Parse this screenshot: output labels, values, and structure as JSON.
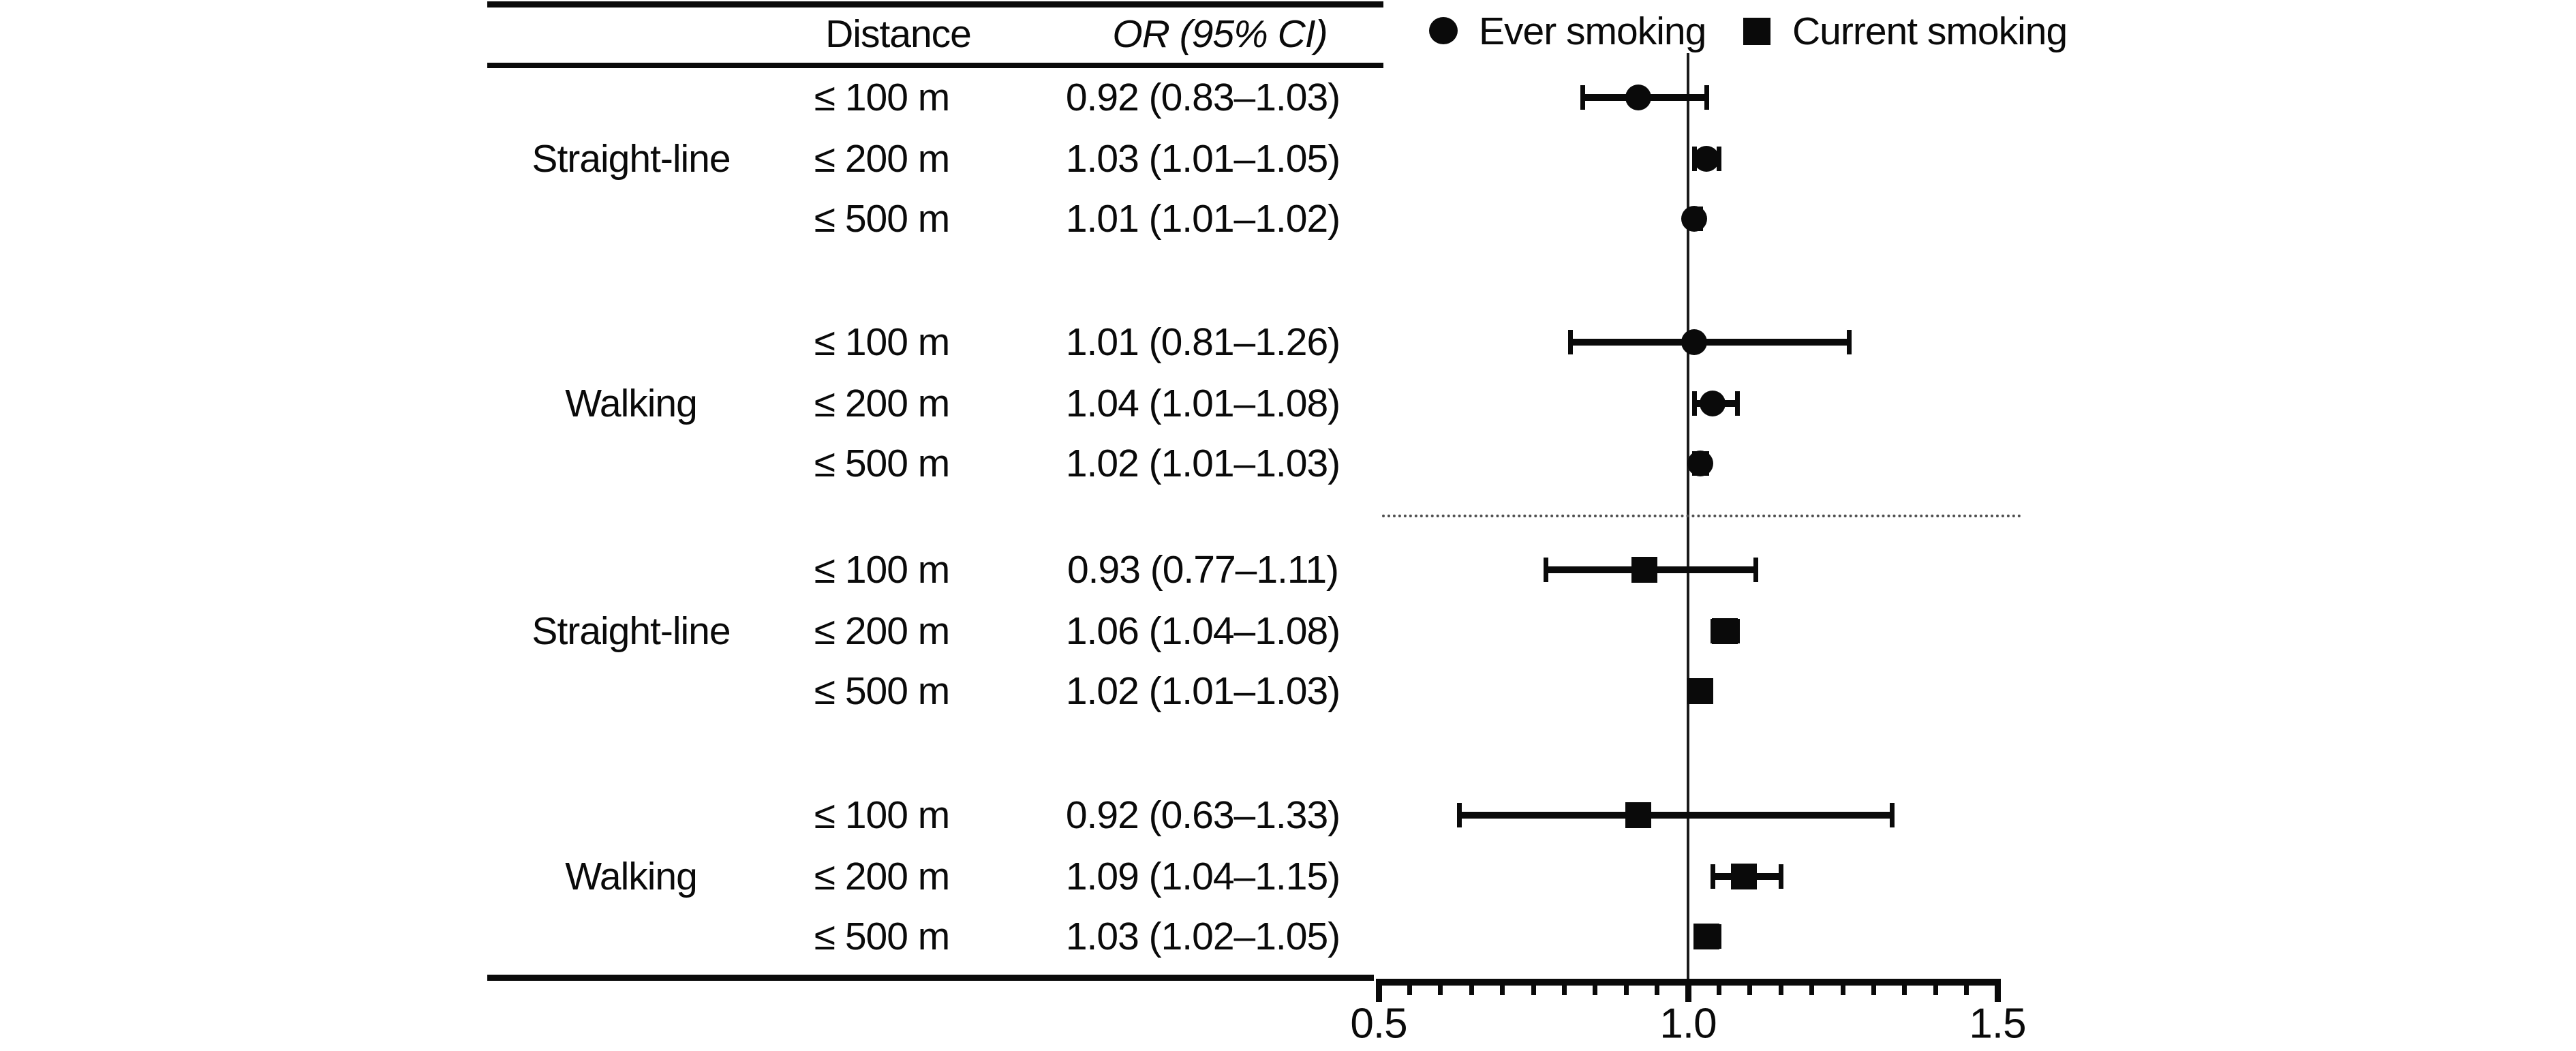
{
  "figure": {
    "background": "#ffffff",
    "text_color": "#0a0a0a",
    "marker_color": "#0a0a0a",
    "divider_color": "#4d4d4d"
  },
  "table": {
    "headers": {
      "distance": "Distance",
      "or": "OR (95% CI)"
    },
    "groups": [
      {
        "exposure": "Ever smoking",
        "method": "Straight-line",
        "rows": [
          {
            "distance": "≤ 100 m",
            "or_text": "0.92 (0.83–1.03)"
          },
          {
            "distance": "≤ 200 m",
            "or_text": "1.03 (1.01–1.05)"
          },
          {
            "distance": "≤ 500 m",
            "or_text": "1.01 (1.01–1.02)"
          }
        ]
      },
      {
        "exposure": "Ever smoking",
        "method": "Walking",
        "rows": [
          {
            "distance": "≤ 100 m",
            "or_text": "1.01 (0.81–1.26)"
          },
          {
            "distance": "≤ 200 m",
            "or_text": "1.04 (1.01–1.08)"
          },
          {
            "distance": "≤ 500 m",
            "or_text": "1.02 (1.01–1.03)"
          }
        ]
      },
      {
        "exposure": "Current smoking",
        "method": "Straight-line",
        "rows": [
          {
            "distance": "≤ 100 m",
            "or_text": "0.93 (0.77–1.11)"
          },
          {
            "distance": "≤ 200 m",
            "or_text": "1.06 (1.04–1.08)"
          },
          {
            "distance": "≤ 500 m",
            "or_text": "1.02 (1.01–1.03)"
          }
        ]
      },
      {
        "exposure": "Current smoking",
        "method": "Walking",
        "rows": [
          {
            "distance": "≤ 100 m",
            "or_text": "0.92 (0.63–1.33)"
          },
          {
            "distance": "≤ 200 m",
            "or_text": "1.09 (1.04–1.15)"
          },
          {
            "distance": "≤ 500 m",
            "or_text": "1.03 (1.02–1.05)"
          }
        ]
      }
    ]
  },
  "legend": [
    {
      "marker": "circle",
      "label": "Ever smoking"
    },
    {
      "marker": "square",
      "label": "Current smoking"
    }
  ],
  "chart_data": {
    "type": "scatter",
    "subtype": "forest-plot",
    "title": "",
    "xlabel": "",
    "ylabel": "",
    "grid": false,
    "legend_position": "top",
    "axis": {
      "min": 0.5,
      "max": 1.5,
      "major_ticks": [
        0.5,
        1.0,
        1.5
      ],
      "tick_labels": [
        "0.5",
        "1.0",
        "1.5"
      ],
      "minor_tick_step": 0.05,
      "reference_line": 1.0
    },
    "series": [
      {
        "name": "Ever smoking",
        "marker": "circle",
        "points": [
          {
            "method": "Straight-line",
            "distance": "≤ 100 m",
            "or": 0.92,
            "ci_low": 0.83,
            "ci_high": 1.03
          },
          {
            "method": "Straight-line",
            "distance": "≤ 200 m",
            "or": 1.03,
            "ci_low": 1.01,
            "ci_high": 1.05
          },
          {
            "method": "Straight-line",
            "distance": "≤ 500 m",
            "or": 1.01,
            "ci_low": 1.01,
            "ci_high": 1.02
          },
          {
            "method": "Walking",
            "distance": "≤ 100 m",
            "or": 1.01,
            "ci_low": 0.81,
            "ci_high": 1.26
          },
          {
            "method": "Walking",
            "distance": "≤ 200 m",
            "or": 1.04,
            "ci_low": 1.01,
            "ci_high": 1.08
          },
          {
            "method": "Walking",
            "distance": "≤ 500 m",
            "or": 1.02,
            "ci_low": 1.01,
            "ci_high": 1.03
          }
        ]
      },
      {
        "name": "Current smoking",
        "marker": "square",
        "points": [
          {
            "method": "Straight-line",
            "distance": "≤ 100 m",
            "or": 0.93,
            "ci_low": 0.77,
            "ci_high": 1.11
          },
          {
            "method": "Straight-line",
            "distance": "≤ 200 m",
            "or": 1.06,
            "ci_low": 1.04,
            "ci_high": 1.08
          },
          {
            "method": "Straight-line",
            "distance": "≤ 500 m",
            "or": 1.02,
            "ci_low": 1.01,
            "ci_high": 1.03
          },
          {
            "method": "Walking",
            "distance": "≤ 100 m",
            "or": 0.92,
            "ci_low": 0.63,
            "ci_high": 1.33
          },
          {
            "method": "Walking",
            "distance": "≤ 200 m",
            "or": 1.09,
            "ci_low": 1.04,
            "ci_high": 1.15
          },
          {
            "method": "Walking",
            "distance": "≤ 500 m",
            "or": 1.03,
            "ci_low": 1.02,
            "ci_high": 1.05
          }
        ]
      }
    ]
  }
}
